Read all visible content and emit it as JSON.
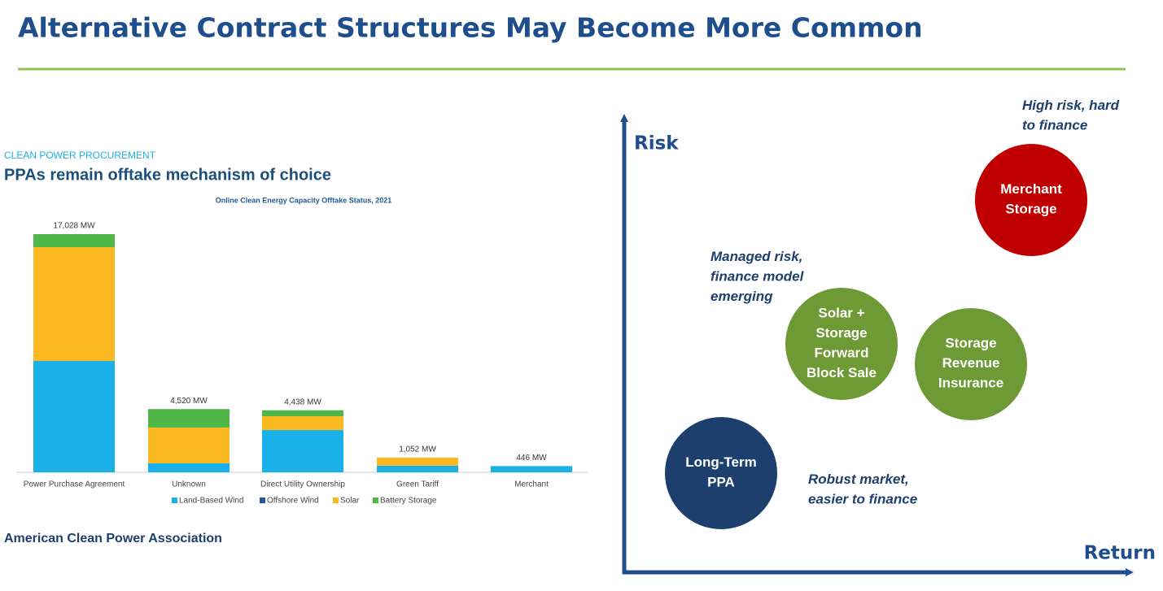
{
  "header": {
    "title": "Alternative Contract Structures May Become More Common"
  },
  "chart_data": {
    "type": "bar",
    "stacked": true,
    "kicker": "CLEAN POWER PROCUREMENT",
    "headline": "PPAs remain offtake mechanism of choice",
    "title": "Online Clean Energy Capacity Offtake Status, 2021",
    "categories": [
      "Power Purchase Agreement",
      "Unknown",
      "Direct Utility Ownership",
      "Green Tariff",
      "Merchant"
    ],
    "series": [
      {
        "name": "Land-Based Wind",
        "color": "#1ab0e8",
        "values": [
          7960,
          640,
          3020,
          470,
          446
        ]
      },
      {
        "name": "Offshore Wind",
        "color": "#1f5a96",
        "values": [
          0,
          0,
          0,
          0,
          0
        ]
      },
      {
        "name": "Solar",
        "color": "#fbb821",
        "values": [
          8140,
          2560,
          990,
          582,
          0
        ]
      },
      {
        "name": "Battery Storage",
        "color": "#4fb748",
        "values": [
          928,
          1320,
          428,
          0,
          0
        ]
      }
    ],
    "totals": {
      "values": [
        17028,
        4520,
        4438,
        1052,
        446
      ],
      "value_labels": [
        "17,028 MW",
        "4,520 MW",
        "4,438 MW",
        "1,052 MW",
        "446 MW"
      ]
    }
  },
  "source": "American Clean Power Association",
  "diagram": {
    "y_axis_label": "Risk",
    "x_axis_label": "Return",
    "nodes": [
      {
        "lines": [
          "Merchant",
          "Storage"
        ],
        "color": "#c00000"
      },
      {
        "lines": [
          "Solar +",
          "Storage",
          "Forward",
          "Block Sale"
        ],
        "color": "#6e9a35"
      },
      {
        "lines": [
          "Storage",
          "Revenue",
          "Insurance"
        ],
        "color": "#6e9a35"
      },
      {
        "lines": [
          "Long-Term",
          "PPA"
        ],
        "color": "#1c3f6e"
      }
    ],
    "annotations": [
      {
        "lines": [
          "High risk, hard",
          "to finance"
        ]
      },
      {
        "lines": [
          "Managed risk,",
          "finance model",
          "emerging"
        ]
      },
      {
        "lines": [
          "Robust market,",
          "easier to finance"
        ]
      }
    ]
  }
}
